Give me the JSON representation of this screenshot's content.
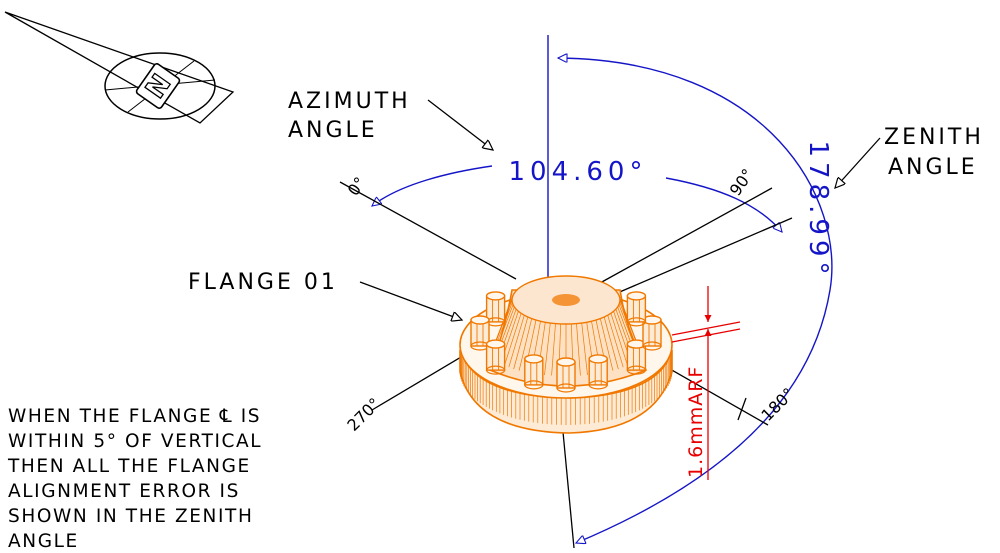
{
  "labels": {
    "azimuth_line1": "AZIMUTH",
    "azimuth_line2": "ANGLE",
    "zenith_line1": "ZENITH",
    "zenith_line2": "ANGLE",
    "flange": "FLANGE 01"
  },
  "dimensions": {
    "azimuth_value": "104.60°",
    "zenith_value": "178.99°",
    "thickness_value": "1.6mmARF"
  },
  "azimuth_ticks": {
    "t0": "0°",
    "t90": "90°",
    "t180": "180°",
    "t270": "270°"
  },
  "north_marker": "N",
  "note_lines": [
    "WHEN THE FLANGE ℄ IS",
    "WITHIN 5° OF VERTICAL",
    "THEN ALL THE FLANGE",
    "ALIGNMENT ERROR IS",
    "SHOWN IN THE ZENITH",
    "ANGLE"
  ],
  "colors": {
    "dimension": "#1515c8",
    "flange": "#f07800",
    "thickness": "#e80000",
    "leader": "#000000"
  }
}
